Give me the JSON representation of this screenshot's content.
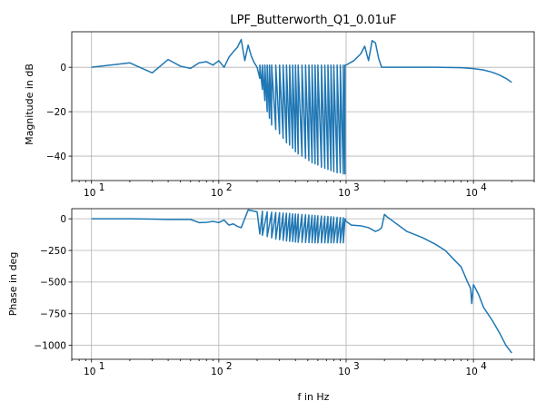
{
  "chart_data": [
    {
      "type": "line",
      "title": "LPF_Butterworth_Q1_0.01uF",
      "xlabel": "",
      "ylabel": "Magnitude in dB",
      "xscale": "log",
      "xlim": [
        7,
        30000
      ],
      "ylim": [
        -51,
        16
      ],
      "xticks": [
        10,
        100,
        1000,
        10000
      ],
      "xtick_labels": [
        {
          "base": "10",
          "exp": "1"
        },
        {
          "base": "10",
          "exp": "2"
        },
        {
          "base": "10",
          "exp": "3"
        },
        {
          "base": "10",
          "exp": "4"
        }
      ],
      "yticks": [
        -40,
        -20,
        0
      ],
      "ytick_labels": [
        "−40",
        "−20",
        "0"
      ],
      "grid": true,
      "color": "#1f77b4",
      "series": [
        {
          "x": [
            10,
            20,
            30,
            40,
            50,
            60,
            70,
            80,
            90,
            100,
            110,
            120,
            130,
            140,
            150,
            160,
            170,
            180,
            190,
            200,
            200,
            210,
            210,
            220,
            220,
            230,
            230,
            240,
            240,
            250,
            250,
            260,
            260,
            280,
            280,
            300,
            300,
            320,
            320,
            340,
            340,
            360,
            360,
            380,
            380,
            400,
            400,
            420,
            420,
            450,
            450,
            480,
            480,
            510,
            510,
            540,
            540,
            570,
            570,
            600,
            600,
            640,
            640,
            680,
            680,
            720,
            720,
            760,
            760,
            800,
            800,
            850,
            850,
            900,
            900,
            950,
            950,
            980,
            980,
            1000,
            1150,
            1300,
            1400,
            1500,
            1600,
            1700,
            1800,
            1900,
            2000,
            3000,
            5000,
            8000,
            10000,
            12000,
            14000,
            16000,
            18000,
            20000
          ],
          "y": [
            0,
            2,
            -2.5,
            3.5,
            0.5,
            -0.5,
            2,
            2.5,
            1,
            3,
            0,
            4.5,
            7,
            9,
            12.5,
            3,
            10,
            5,
            2,
            0,
            0,
            -5,
            1,
            -10,
            1,
            -15,
            1,
            -20,
            1,
            -23,
            1,
            -26,
            1,
            -28,
            1,
            -30,
            1,
            -32,
            1,
            -34,
            1,
            -35,
            1,
            -36.5,
            1,
            -38,
            1,
            -39,
            1,
            -40,
            1,
            -41,
            1,
            -42,
            1,
            -43,
            1,
            -43.5,
            1,
            -44,
            1,
            -45,
            1,
            -45.5,
            1,
            -46,
            1,
            -46.5,
            1,
            -47,
            1,
            -47.5,
            1,
            -47.5,
            1,
            -48,
            1,
            -48,
            1,
            1,
            3,
            6,
            9.5,
            3,
            12,
            11,
            4,
            0,
            0,
            0,
            0,
            -0.2,
            -0.6,
            -1.2,
            -2.2,
            -3.5,
            -5,
            -6.8
          ]
        }
      ]
    },
    {
      "type": "line",
      "title": "",
      "xlabel": "f in Hz",
      "ylabel": "Phase in deg",
      "xscale": "log",
      "xlim": [
        7,
        30000
      ],
      "ylim": [
        -1110,
        80
      ],
      "xticks": [
        10,
        100,
        1000,
        10000
      ],
      "xtick_labels": [
        {
          "base": "10",
          "exp": "1"
        },
        {
          "base": "10",
          "exp": "2"
        },
        {
          "base": "10",
          "exp": "3"
        },
        {
          "base": "10",
          "exp": "4"
        }
      ],
      "yticks": [
        -1000,
        -750,
        -500,
        -250,
        0
      ],
      "ytick_labels": [
        "−1000",
        "−750",
        "−500",
        "−250",
        "0"
      ],
      "grid": true,
      "color": "#1f77b4",
      "series": [
        {
          "x": [
            10,
            20,
            30,
            40,
            50,
            60,
            70,
            80,
            90,
            100,
            110,
            120,
            130,
            140,
            150,
            170,
            200,
            210,
            220,
            220,
            240,
            240,
            260,
            260,
            280,
            280,
            300,
            300,
            320,
            320,
            340,
            340,
            360,
            360,
            380,
            380,
            400,
            400,
            420,
            420,
            450,
            450,
            480,
            480,
            510,
            510,
            540,
            540,
            570,
            570,
            600,
            600,
            640,
            640,
            680,
            680,
            720,
            720,
            760,
            760,
            800,
            800,
            850,
            850,
            900,
            900,
            950,
            950,
            980,
            1000,
            1100,
            1300,
            1500,
            1700,
            1800,
            1900,
            2000,
            2100,
            3000,
            4000,
            5000,
            6000,
            7000,
            8000,
            9000,
            9500,
            9700,
            10000,
            11000,
            12000,
            14000,
            16000,
            18000,
            20000
          ],
          "y": [
            0,
            0,
            -2,
            -5,
            -5,
            -5,
            -30,
            -28,
            -20,
            -30,
            -10,
            -50,
            -40,
            -60,
            -70,
            70,
            55,
            -120,
            60,
            -130,
            55,
            -140,
            52,
            -150,
            50,
            -160,
            48,
            -165,
            45,
            -170,
            44,
            -175,
            42,
            -178,
            40,
            -180,
            38,
            -183,
            36,
            -185,
            34,
            -186,
            32,
            -187,
            30,
            -188,
            28,
            -189,
            26,
            -190,
            24,
            -190,
            22,
            -190,
            20,
            -190,
            18,
            -190,
            16,
            -190,
            14,
            -190,
            12,
            -190,
            10,
            -190,
            8,
            -190,
            0,
            -20,
            -50,
            -55,
            -70,
            -100,
            -90,
            -70,
            35,
            15,
            -100,
            -150,
            -200,
            -250,
            -320,
            -380,
            -500,
            -550,
            -670,
            -520,
            -600,
            -700,
            -800,
            -900,
            -1000,
            -1060
          ]
        }
      ]
    }
  ]
}
